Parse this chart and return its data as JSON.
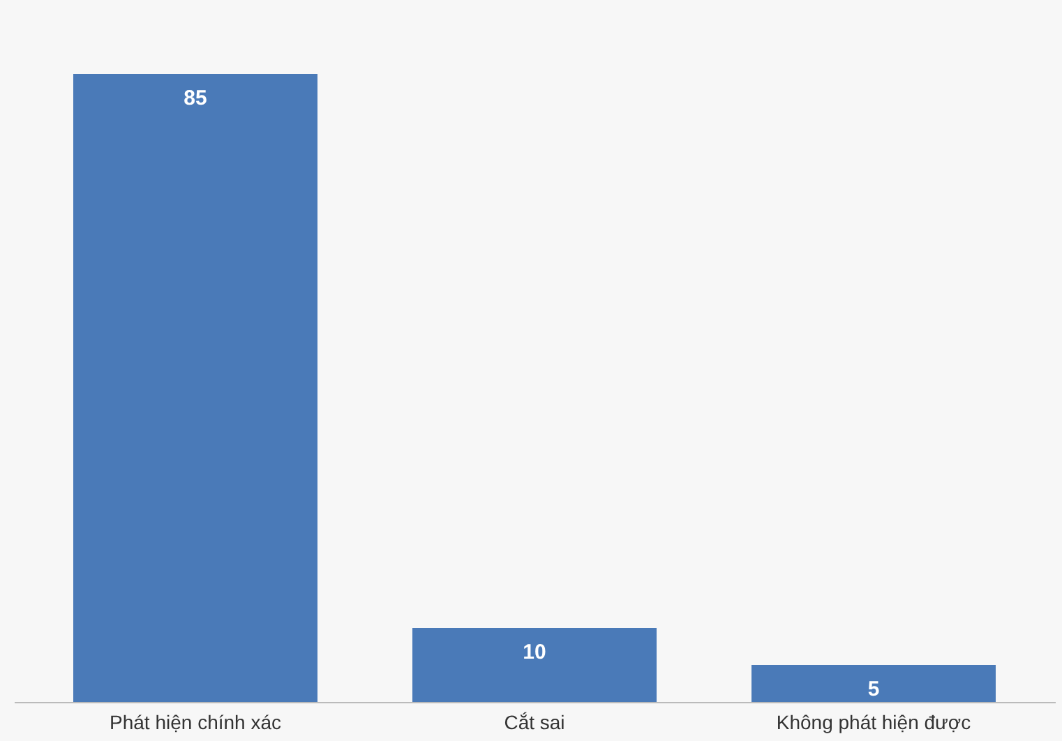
{
  "chart_data": {
    "type": "bar",
    "categories": [
      "Phát hiện chính xác",
      "Cắt sai",
      "Không phát hiện được"
    ],
    "values": [
      85,
      10,
      5
    ],
    "color": "#4a7ab8",
    "data_labels": true,
    "grid": false
  }
}
